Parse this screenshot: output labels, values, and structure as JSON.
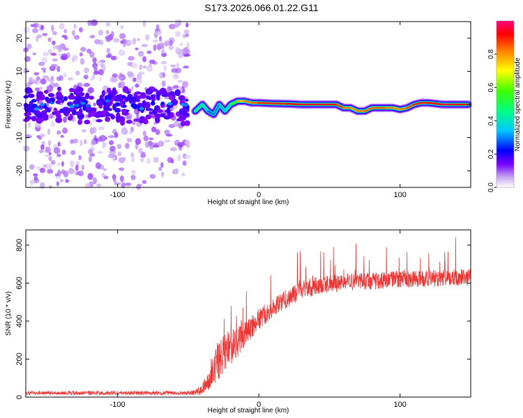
{
  "title": "S173.2026.066.01.22.G11",
  "colors": {
    "line": "#ee3333",
    "background": "#ffffff",
    "axis": "#000000"
  },
  "chart_data": [
    {
      "type": "heatmap",
      "title": "S173.2026.066.01.22.G11",
      "xlabel": "Height of straight line (km)",
      "ylabel": "Frequency (Hz)",
      "xlim": [
        -165,
        150
      ],
      "ylim": [
        -25,
        25
      ],
      "x_ticks": [
        -100,
        0,
        100
      ],
      "x_tick_labels": [
        "-100",
        "0",
        "100"
      ],
      "y_ticks": [
        -20,
        -10,
        0,
        10,
        20
      ],
      "y_tick_labels": [
        "-20",
        "-10",
        "0",
        "10",
        "20"
      ],
      "colorbar": {
        "label": "Normalized spectral amplitude",
        "range": [
          0.0,
          1.0
        ],
        "ticks": [
          0.0,
          0.2,
          0.4,
          0.6,
          0.8
        ],
        "tick_labels": [
          "0.0",
          "0.2",
          "0.4",
          "0.6",
          "0.8"
        ],
        "colormap": "rainbow (white-violet-blue-cyan-green-yellow-red-magenta)"
      },
      "ridge": {
        "x": [
          -45,
          -40,
          -36,
          -32,
          -28,
          -24,
          -20,
          -15,
          -10,
          -5,
          0,
          10,
          20,
          30,
          40,
          50,
          55,
          60,
          65,
          70,
          75,
          80,
          85,
          90,
          95,
          100,
          105,
          110,
          115,
          120,
          130,
          140,
          148
        ],
        "y": [
          -2,
          0,
          -2,
          -3,
          0,
          -2,
          0,
          1,
          1,
          0.5,
          0.5,
          0.3,
          0.2,
          0,
          0,
          0,
          0,
          -1,
          -1,
          -2,
          -2,
          -1,
          -1,
          -1,
          -1,
          -1.5,
          -1,
          0,
          0.5,
          0.5,
          0,
          0,
          0
        ],
        "amplitude": [
          0.35,
          0.45,
          0.3,
          0.25,
          0.35,
          0.3,
          0.4,
          0.7,
          0.85,
          0.8,
          0.9,
          0.9,
          0.9,
          0.95,
          0.95,
          0.95,
          0.9,
          0.85,
          0.8,
          0.8,
          0.85,
          0.85,
          0.85,
          0.85,
          0.8,
          0.8,
          0.85,
          0.9,
          0.9,
          0.9,
          0.95,
          0.95,
          0.9
        ]
      },
      "noise_region": {
        "x_range": [
          -165,
          -50
        ],
        "y_range": [
          -25,
          25
        ],
        "note": "scattered low-amplitude energy, band near 0 Hz"
      }
    },
    {
      "type": "line",
      "xlabel": "Height of straight line (km)",
      "ylabel": "SNR (10 * v/v)",
      "xlim": [
        -165,
        150
      ],
      "ylim": [
        0,
        880
      ],
      "x_ticks": [
        -100,
        0,
        100
      ],
      "x_tick_labels": [
        "-100",
        "0",
        "100"
      ],
      "y_ticks": [
        0,
        200,
        400,
        600,
        800
      ],
      "y_tick_labels": [
        "0",
        "200",
        "400",
        "600",
        "800"
      ],
      "series": [
        {
          "name": "SNR",
          "color": "#ee3333",
          "envelope_x": [
            -165,
            -100,
            -60,
            -50,
            -45,
            -40,
            -35,
            -30,
            -25,
            -20,
            -15,
            -10,
            -5,
            0,
            10,
            20,
            30,
            40,
            50,
            60,
            70,
            80,
            90,
            100,
            110,
            120,
            130,
            140,
            150
          ],
          "envelope_mean": [
            22,
            22,
            22,
            22,
            25,
            40,
            90,
            170,
            230,
            260,
            290,
            330,
            370,
            410,
            470,
            520,
            560,
            585,
            595,
            605,
            610,
            610,
            615,
            620,
            620,
            625,
            625,
            630,
            630
          ],
          "noise_amplitude": [
            10,
            10,
            10,
            10,
            15,
            30,
            60,
            90,
            110,
            100,
            80,
            70,
            60,
            55,
            50,
            50,
            50,
            50,
            45,
            45,
            45,
            45,
            45,
            45,
            45,
            45,
            45,
            45,
            45
          ]
        }
      ]
    }
  ]
}
